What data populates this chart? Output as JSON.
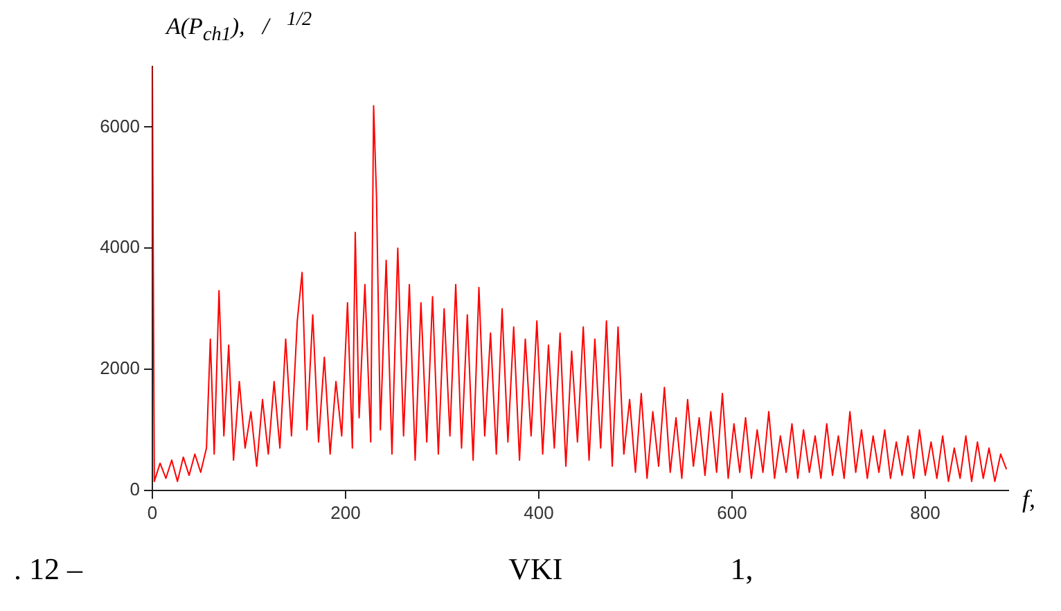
{
  "chart_data": {
    "type": "line",
    "ylabel": "A(P$_{ch1}$),   /   $^{1/2}$",
    "xlabel": "f,",
    "annotations": [
      ". 12 –                                                        VKI                      1,"
    ],
    "xlim": [
      0,
      886
    ],
    "ylim": [
      0,
      7000
    ],
    "xticks": [
      0,
      200,
      400,
      600,
      800
    ],
    "yticks": [
      0,
      2000,
      4000,
      6000
    ],
    "marker": "none",
    "series": [
      {
        "color": "#ff0000",
        "x": [
          0,
          2,
          8,
          14,
          20,
          26,
          32,
          38,
          44,
          50,
          56,
          60,
          64,
          69,
          74,
          79,
          84,
          90,
          96,
          102,
          108,
          114,
          120,
          126,
          132,
          138,
          144,
          150,
          155,
          160,
          166,
          172,
          178,
          184,
          190,
          196,
          202,
          207,
          210,
          214,
          220,
          226,
          229,
          232,
          236,
          242,
          248,
          254,
          260,
          266,
          272,
          278,
          284,
          290,
          296,
          302,
          308,
          314,
          320,
          326,
          332,
          338,
          344,
          350,
          356,
          362,
          368,
          374,
          380,
          386,
          392,
          398,
          404,
          410,
          416,
          422,
          428,
          434,
          440,
          446,
          452,
          458,
          464,
          470,
          476,
          482,
          488,
          494,
          500,
          506,
          512,
          518,
          524,
          530,
          536,
          542,
          548,
          554,
          560,
          566,
          572,
          578,
          584,
          590,
          596,
          602,
          608,
          614,
          620,
          626,
          632,
          638,
          644,
          650,
          656,
          662,
          668,
          674,
          680,
          686,
          692,
          698,
          704,
          710,
          716,
          722,
          728,
          734,
          740,
          746,
          752,
          758,
          764,
          770,
          776,
          782,
          788,
          794,
          800,
          806,
          812,
          818,
          824,
          830,
          836,
          842,
          848,
          854,
          860,
          866,
          872,
          878,
          884
        ],
        "values": [
          7000,
          150,
          450,
          200,
          500,
          150,
          550,
          250,
          600,
          300,
          700,
          2500,
          600,
          3300,
          900,
          2400,
          500,
          1800,
          700,
          1300,
          400,
          1500,
          600,
          1800,
          700,
          2500,
          900,
          2800,
          3600,
          1000,
          2900,
          800,
          2200,
          600,
          1800,
          900,
          3100,
          700,
          4260,
          1200,
          3400,
          800,
          6350,
          4850,
          1000,
          3800,
          600,
          4000,
          900,
          3400,
          500,
          3100,
          800,
          3200,
          600,
          3000,
          900,
          3400,
          700,
          2900,
          500,
          3350,
          900,
          2600,
          600,
          3000,
          800,
          2700,
          500,
          2500,
          900,
          2800,
          600,
          2400,
          700,
          2600,
          400,
          2300,
          800,
          2700,
          500,
          2500,
          700,
          2800,
          400,
          2700,
          600,
          1500,
          300,
          1600,
          200,
          1300,
          400,
          1700,
          300,
          1200,
          200,
          1500,
          400,
          1200,
          250,
          1300,
          300,
          1600,
          200,
          1100,
          300,
          1200,
          200,
          1000,
          300,
          1300,
          200,
          900,
          300,
          1100,
          200,
          1000,
          300,
          900,
          200,
          1100,
          250,
          900,
          200,
          1300,
          300,
          1000,
          200,
          900,
          300,
          1000,
          200,
          800,
          250,
          900,
          200,
          1000,
          250,
          800,
          200,
          900,
          150,
          700,
          200,
          900,
          150,
          800,
          200,
          700,
          150,
          600,
          350
        ]
      }
    ]
  }
}
